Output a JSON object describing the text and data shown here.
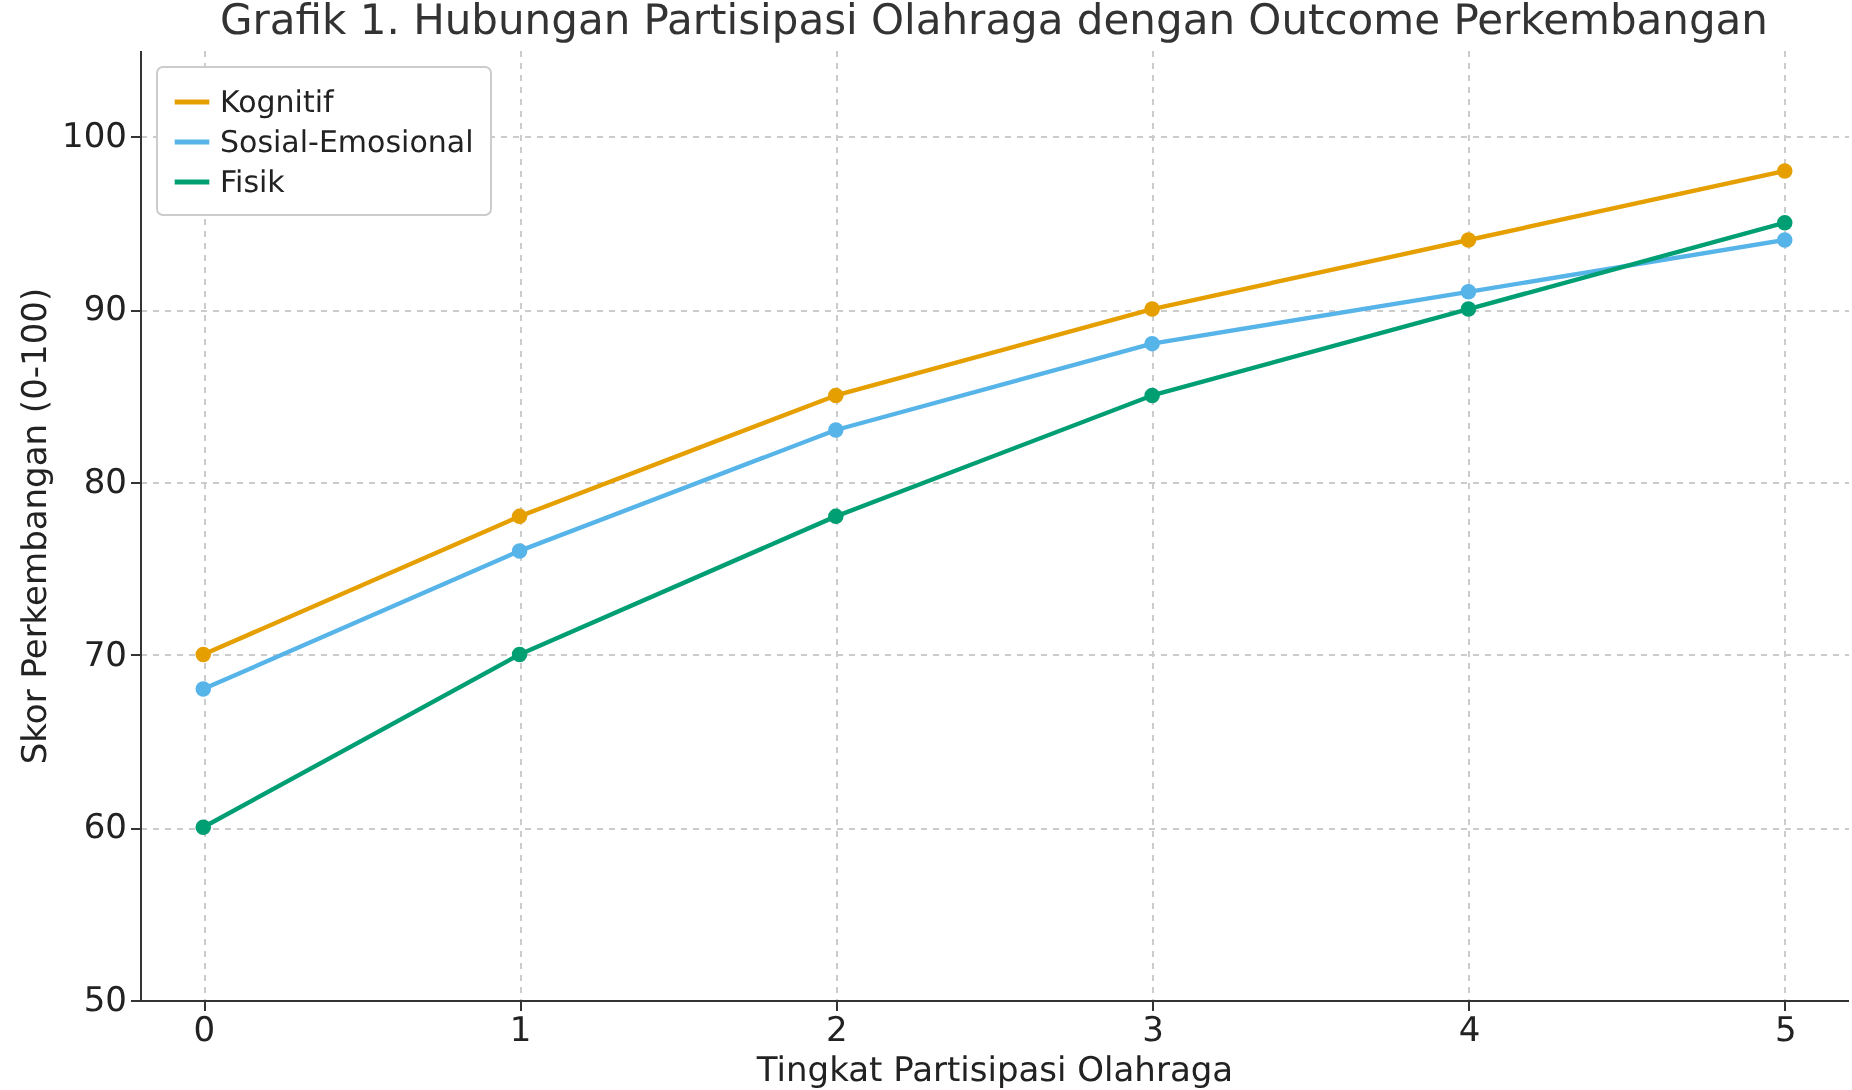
{
  "chart_data": {
    "type": "line",
    "title": "Grafik 1. Hubungan Partisipasi Olahraga dengan Outcome Perkembangan",
    "xlabel": "Tingkat Partisipasi Olahraga",
    "ylabel": "Skor Perkembangan (0-100)",
    "x": [
      0,
      1,
      2,
      3,
      4,
      5
    ],
    "series": [
      {
        "name": "Kognitif",
        "color": "#e69f00",
        "values": [
          70,
          78,
          85,
          90,
          94,
          98
        ]
      },
      {
        "name": "Sosial-Emosional",
        "color": "#56b4e9",
        "values": [
          68,
          76,
          83,
          88,
          91,
          94
        ]
      },
      {
        "name": "Fisik",
        "color": "#009e73",
        "values": [
          60,
          70,
          78,
          85,
          90,
          95
        ]
      }
    ],
    "xlim": [
      -0.2,
      5.2
    ],
    "xticks": [
      0,
      1,
      2,
      3,
      4,
      5
    ],
    "ylim": [
      50,
      105
    ],
    "yticks": [
      50,
      60,
      70,
      80,
      90,
      100
    ],
    "grid": true,
    "legend": "top left",
    "marker": "circle",
    "line_style": "solid"
  }
}
